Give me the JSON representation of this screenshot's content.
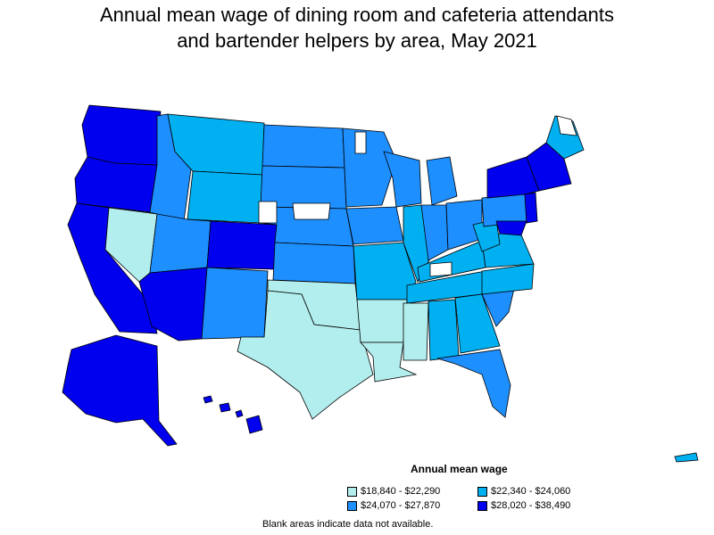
{
  "title_line1": "Annual mean wage of dining room and cafeteria attendants",
  "title_line2": "and bartender helpers by area, May 2021",
  "legend": {
    "title": "Annual mean wage",
    "items": [
      {
        "label": "$18,840 - $22,290",
        "color": "#b3eeee"
      },
      {
        "label": "$22,340 - $24,060",
        "color": "#00b0f0"
      },
      {
        "label": "$24,070 - $27,870",
        "color": "#1e8fff"
      },
      {
        "label": "$28,020 - $38,490",
        "color": "#0000ee"
      }
    ]
  },
  "note": "Blank areas indicate data not available.",
  "colors": {
    "tier1": "#b3eeee",
    "tier2": "#00b0f0",
    "tier3": "#1e8fff",
    "tier4": "#0000ee",
    "border": "#000000",
    "blank": "#ffffff"
  }
}
